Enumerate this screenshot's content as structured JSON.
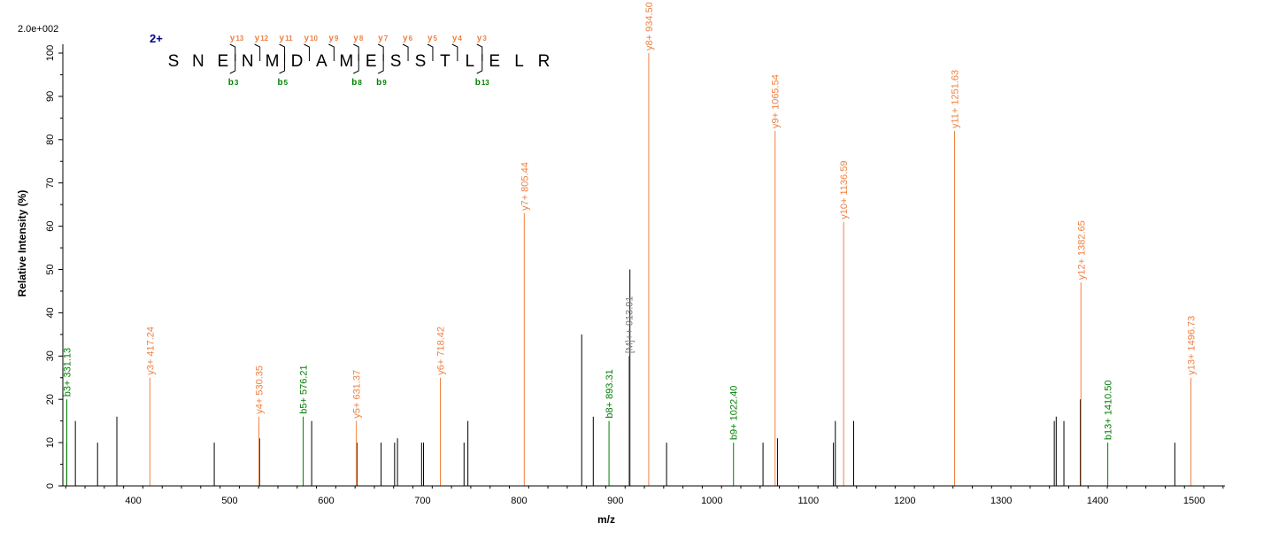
{
  "chart_data": {
    "type": "bar",
    "xlabel": "m/z",
    "ylabel": "Relative  Intensity (%)",
    "y_max_label": "2.0e+002",
    "xlim": [
      327,
      1532
    ],
    "ylim": [
      0,
      100
    ],
    "xticks": [
      400,
      500,
      600,
      700,
      800,
      900,
      1000,
      1100,
      1200,
      1300,
      1400,
      1500
    ],
    "yticks": [
      0,
      10,
      20,
      30,
      40,
      50,
      60,
      70,
      80,
      90,
      100
    ],
    "colors": {
      "y": "#f08040",
      "b": "#008000",
      "precursor": "#808080",
      "unassigned": "#000000"
    },
    "sequence": {
      "charge": "2+",
      "residues": [
        "S",
        "N",
        "E",
        "N",
        "M",
        "D",
        "A",
        "M",
        "E",
        "S",
        "S",
        "T",
        "L",
        "E",
        "L",
        "R"
      ],
      "y_ions": [
        {
          "label": "y",
          "num": "13",
          "after": 3
        },
        {
          "label": "y",
          "num": "12",
          "after": 4
        },
        {
          "label": "y",
          "num": "11",
          "after": 5
        },
        {
          "label": "y",
          "num": "10",
          "after": 6
        },
        {
          "label": "y",
          "num": "9",
          "after": 7
        },
        {
          "label": "y",
          "num": "8",
          "after": 8
        },
        {
          "label": "y",
          "num": "7",
          "after": 9
        },
        {
          "label": "y",
          "num": "6",
          "after": 10
        },
        {
          "label": "y",
          "num": "5",
          "after": 11
        },
        {
          "label": "y",
          "num": "4",
          "after": 12
        },
        {
          "label": "y",
          "num": "3",
          "after": 13
        }
      ],
      "b_ions": [
        {
          "label": "b",
          "num": "3",
          "after": 3
        },
        {
          "label": "b",
          "num": "5",
          "after": 5
        },
        {
          "label": "b",
          "num": "8",
          "after": 8
        },
        {
          "label": "b",
          "num": "9",
          "after": 9
        },
        {
          "label": "b",
          "num": "13",
          "after": 13
        }
      ]
    },
    "labeled_peaks": [
      {
        "mz": 331.13,
        "intensity": 20,
        "ion": "b",
        "label": "b3+ 331.13"
      },
      {
        "mz": 417.24,
        "intensity": 25,
        "ion": "y",
        "label": "y3+ 417.24"
      },
      {
        "mz": 530.35,
        "intensity": 16,
        "ion": "y",
        "label": "y4+ 530.35"
      },
      {
        "mz": 576.21,
        "intensity": 16,
        "ion": "b",
        "label": "b5+ 576.21"
      },
      {
        "mz": 631.37,
        "intensity": 15,
        "ion": "y",
        "label": "y5+ 631.37"
      },
      {
        "mz": 718.42,
        "intensity": 25,
        "ion": "y",
        "label": "y6+ 718.42"
      },
      {
        "mz": 805.44,
        "intensity": 63,
        "ion": "y",
        "label": "y7+ 805.44"
      },
      {
        "mz": 893.31,
        "intensity": 15,
        "ion": "b",
        "label": "b8+ 893.31"
      },
      {
        "mz": 913.91,
        "intensity": 30,
        "ion": "precursor",
        "label": "[M]++ 913.91"
      },
      {
        "mz": 934.5,
        "intensity": 100,
        "ion": "y",
        "label": "y8+ 934.50"
      },
      {
        "mz": 1022.4,
        "intensity": 10,
        "ion": "b",
        "label": "b9+ 1022.40"
      },
      {
        "mz": 1065.54,
        "intensity": 82,
        "ion": "y",
        "label": "y9+ 1065.54"
      },
      {
        "mz": 1136.59,
        "intensity": 61,
        "ion": "y",
        "label": "y10+ 1136.59"
      },
      {
        "mz": 1251.63,
        "intensity": 82,
        "ion": "y",
        "label": "y11+ 1251.63"
      },
      {
        "mz": 1382.65,
        "intensity": 47,
        "ion": "y",
        "label": "y12+ 1382.65"
      },
      {
        "mz": 1410.5,
        "intensity": 10,
        "ion": "b",
        "label": "b13+ 1410.50"
      },
      {
        "mz": 1496.73,
        "intensity": 25,
        "ion": "y",
        "label": "y13+ 1496.73"
      }
    ],
    "unlabeled_peaks": [
      {
        "mz": 331,
        "intensity": 10
      },
      {
        "mz": 340,
        "intensity": 15
      },
      {
        "mz": 363,
        "intensity": 10
      },
      {
        "mz": 383,
        "intensity": 16
      },
      {
        "mz": 484,
        "intensity": 10
      },
      {
        "mz": 531,
        "intensity": 11
      },
      {
        "mz": 585,
        "intensity": 15
      },
      {
        "mz": 632,
        "intensity": 10
      },
      {
        "mz": 657,
        "intensity": 10
      },
      {
        "mz": 671,
        "intensity": 10
      },
      {
        "mz": 674,
        "intensity": 11
      },
      {
        "mz": 699,
        "intensity": 10
      },
      {
        "mz": 701,
        "intensity": 10
      },
      {
        "mz": 743,
        "intensity": 10
      },
      {
        "mz": 747,
        "intensity": 15
      },
      {
        "mz": 865,
        "intensity": 35
      },
      {
        "mz": 877,
        "intensity": 16
      },
      {
        "mz": 915,
        "intensity": 50
      },
      {
        "mz": 953,
        "intensity": 10
      },
      {
        "mz": 1053,
        "intensity": 10
      },
      {
        "mz": 1068,
        "intensity": 11
      },
      {
        "mz": 1126,
        "intensity": 10
      },
      {
        "mz": 1128,
        "intensity": 15
      },
      {
        "mz": 1147,
        "intensity": 15
      },
      {
        "mz": 1355,
        "intensity": 15
      },
      {
        "mz": 1357,
        "intensity": 16
      },
      {
        "mz": 1365,
        "intensity": 15
      },
      {
        "mz": 1382,
        "intensity": 20
      },
      {
        "mz": 1480,
        "intensity": 10
      }
    ]
  }
}
